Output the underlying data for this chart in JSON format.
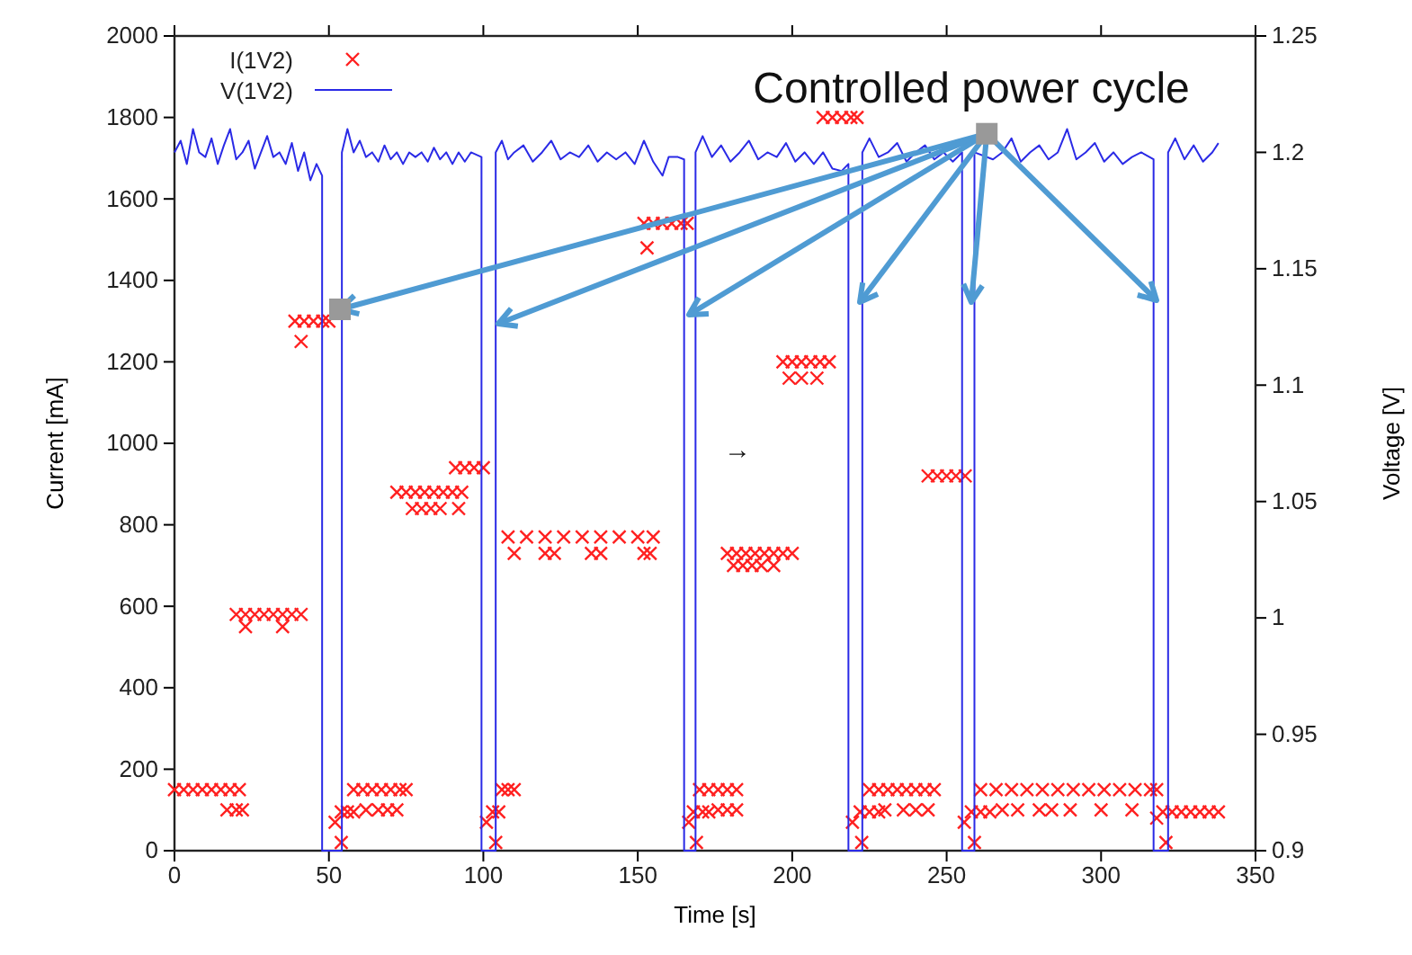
{
  "chart_data": {
    "type": "scatter",
    "xlabel": "Time [s]",
    "ylabel": "Current [mA]",
    "y2label": "Voltage [V]",
    "xlim": [
      0,
      350
    ],
    "xticks": [
      0,
      50,
      100,
      150,
      200,
      250,
      300,
      350
    ],
    "ylim": [
      0,
      2000
    ],
    "yticks": [
      0,
      200,
      400,
      600,
      800,
      1000,
      1200,
      1400,
      1600,
      1800,
      2000
    ],
    "y2lim": [
      0.9,
      1.25
    ],
    "y2ticks": [
      0.9,
      0.95,
      1,
      1.05,
      1.1,
      1.15,
      1.2,
      1.25
    ],
    "legend": "top left",
    "grid": false,
    "annotations": [
      {
        "text": "Controlled power cycle",
        "x": 263,
        "y": 1760
      },
      "→"
    ],
    "series": [
      {
        "name": "I(1V2)",
        "type": "scatter",
        "marker": "cross",
        "color": "#ff2020",
        "x": [
          0,
          3,
          6,
          9,
          12,
          15,
          18,
          21,
          17,
          20,
          22,
          20,
          23,
          26,
          29,
          32,
          35,
          38,
          41,
          23,
          35,
          39,
          42,
          45,
          48,
          50,
          41,
          52,
          54,
          54,
          56,
          58,
          58,
          61,
          64,
          67,
          70,
          73,
          75,
          62,
          66,
          69,
          72,
          72,
          75,
          78,
          81,
          84,
          87,
          90,
          93,
          77,
          80,
          83,
          86,
          92,
          91,
          94,
          97,
          100,
          101,
          104,
          103,
          105,
          106,
          108,
          110,
          108,
          114,
          120,
          126,
          132,
          138,
          144,
          150,
          155,
          110,
          120,
          123,
          135,
          138,
          152,
          154,
          152,
          155,
          158,
          161,
          164,
          166,
          153,
          166.5,
          169,
          168,
          171,
          173,
          170,
          173,
          176,
          179,
          182,
          176,
          179,
          182,
          179,
          182,
          185,
          188,
          191,
          194,
          197,
          200,
          181,
          184,
          187,
          190,
          194,
          197,
          200,
          203,
          206,
          209,
          212,
          199,
          203,
          208,
          210,
          213,
          216,
          219,
          221,
          219.5,
          222.5,
          222,
          225,
          228,
          225,
          228,
          231,
          234,
          237,
          240,
          243,
          246,
          230,
          236,
          240,
          244,
          244,
          247,
          250,
          253,
          256,
          255.7,
          259,
          258,
          261,
          264,
          261,
          266,
          271,
          276,
          281,
          286,
          291,
          296,
          301,
          306,
          311,
          316,
          318,
          268,
          273,
          280,
          284,
          290,
          300,
          310,
          318,
          321,
          320,
          323,
          326,
          329,
          332,
          335,
          338
        ],
        "values": [
          150,
          150,
          150,
          150,
          150,
          150,
          150,
          150,
          100,
          100,
          100,
          580,
          580,
          580,
          580,
          580,
          580,
          580,
          580,
          550,
          550,
          1300,
          1300,
          1300,
          1300,
          1300,
          1250,
          70,
          20,
          95,
          95,
          95,
          150,
          150,
          150,
          150,
          150,
          150,
          150,
          100,
          100,
          100,
          100,
          880,
          880,
          880,
          880,
          880,
          880,
          880,
          880,
          840,
          840,
          840,
          840,
          840,
          940,
          940,
          940,
          940,
          70,
          20,
          95,
          95,
          150,
          150,
          150,
          770,
          770,
          770,
          770,
          770,
          770,
          770,
          770,
          770,
          730,
          730,
          730,
          730,
          730,
          730,
          730,
          1540,
          1540,
          1540,
          1540,
          1540,
          1540,
          1480,
          70,
          20,
          95,
          95,
          95,
          150,
          150,
          150,
          150,
          150,
          100,
          100,
          100,
          730,
          730,
          730,
          730,
          730,
          730,
          730,
          730,
          700,
          700,
          700,
          700,
          700,
          1200,
          1200,
          1200,
          1200,
          1200,
          1200,
          1160,
          1160,
          1160,
          1800,
          1800,
          1800,
          1800,
          1800,
          70,
          20,
          95,
          95,
          95,
          150,
          150,
          150,
          150,
          150,
          150,
          150,
          150,
          100,
          100,
          100,
          100,
          920,
          920,
          920,
          920,
          920,
          70,
          20,
          95,
          95,
          95,
          150,
          150,
          150,
          150,
          150,
          150,
          150,
          150,
          150,
          150,
          150,
          150,
          150,
          100,
          100,
          100,
          100,
          100,
          100,
          100,
          80,
          20,
          95,
          95,
          95,
          95,
          95,
          95,
          95
        ]
      },
      {
        "name": "V(1V2)",
        "type": "line",
        "marker": "none",
        "axis": "y2",
        "color": "#2a2ae6",
        "x": [
          0,
          2,
          4,
          6,
          8,
          10,
          12,
          14,
          16,
          18,
          20,
          22,
          24,
          26,
          28,
          30,
          32,
          34,
          36,
          38,
          40,
          42,
          44,
          46,
          47.8,
          47.8,
          54.2,
          54.2,
          56,
          58,
          60,
          62,
          64,
          66,
          68,
          70,
          72,
          74,
          76,
          78,
          80,
          82,
          84,
          86,
          88,
          90,
          92,
          94,
          96,
          99.4,
          99.4,
          104,
          104,
          106,
          108,
          110,
          113,
          116,
          119,
          122,
          125,
          128,
          131,
          134,
          137,
          140,
          143,
          146,
          149,
          152,
          155,
          158,
          160,
          163,
          165,
          165,
          168.7,
          168.7,
          171,
          174,
          177,
          180,
          183,
          186,
          189,
          192,
          195,
          198,
          201,
          204,
          207,
          210,
          213,
          216,
          218.2,
          218.2,
          222.7,
          222.7,
          225,
          228,
          231,
          234,
          237,
          240,
          243,
          246,
          249,
          252,
          255,
          255,
          259,
          259,
          265,
          268,
          271,
          274,
          277,
          280,
          283,
          286,
          289,
          292,
          295,
          298,
          301,
          304,
          307,
          310,
          313,
          317,
          317,
          321.7,
          321.7,
          324,
          327,
          330,
          333,
          336,
          338
        ],
        "values": [
          1.2,
          1.205,
          1.195,
          1.21,
          1.2,
          1.198,
          1.206,
          1.195,
          1.203,
          1.21,
          1.197,
          1.2,
          1.205,
          1.193,
          1.2,
          1.207,
          1.198,
          1.2,
          1.195,
          1.204,
          1.192,
          1.2,
          1.188,
          1.195,
          1.19,
          0.9,
          0.9,
          1.2,
          1.21,
          1.2,
          1.205,
          1.198,
          1.2,
          1.196,
          1.203,
          1.197,
          1.2,
          1.195,
          1.2,
          1.198,
          1.2,
          1.196,
          1.202,
          1.197,
          1.2,
          1.195,
          1.2,
          1.196,
          1.2,
          1.198,
          0.9,
          0.9,
          1.2,
          1.205,
          1.197,
          1.2,
          1.203,
          1.196,
          1.2,
          1.205,
          1.197,
          1.2,
          1.198,
          1.203,
          1.196,
          1.2,
          1.197,
          1.2,
          1.195,
          1.205,
          1.196,
          1.19,
          1.198,
          1.198,
          1.197,
          0.9,
          0.9,
          1.2,
          1.207,
          1.198,
          1.203,
          1.196,
          1.2,
          1.205,
          1.197,
          1.2,
          1.198,
          1.204,
          1.196,
          1.2,
          1.195,
          1.2,
          1.193,
          1.192,
          1.195,
          0.9,
          0.9,
          1.2,
          1.206,
          1.198,
          1.2,
          1.204,
          1.196,
          1.2,
          1.203,
          1.197,
          1.2,
          1.196,
          1.2,
          0.9,
          0.9,
          1.2,
          1.197,
          1.2,
          1.206,
          1.196,
          1.2,
          1.203,
          1.197,
          1.2,
          1.21,
          1.197,
          1.2,
          1.204,
          1.196,
          1.2,
          1.195,
          1.198,
          1.2,
          1.197,
          0.9,
          0.9,
          1.2,
          1.206,
          1.197,
          1.203,
          1.196,
          1.2,
          1.204
        ]
      }
    ]
  }
}
